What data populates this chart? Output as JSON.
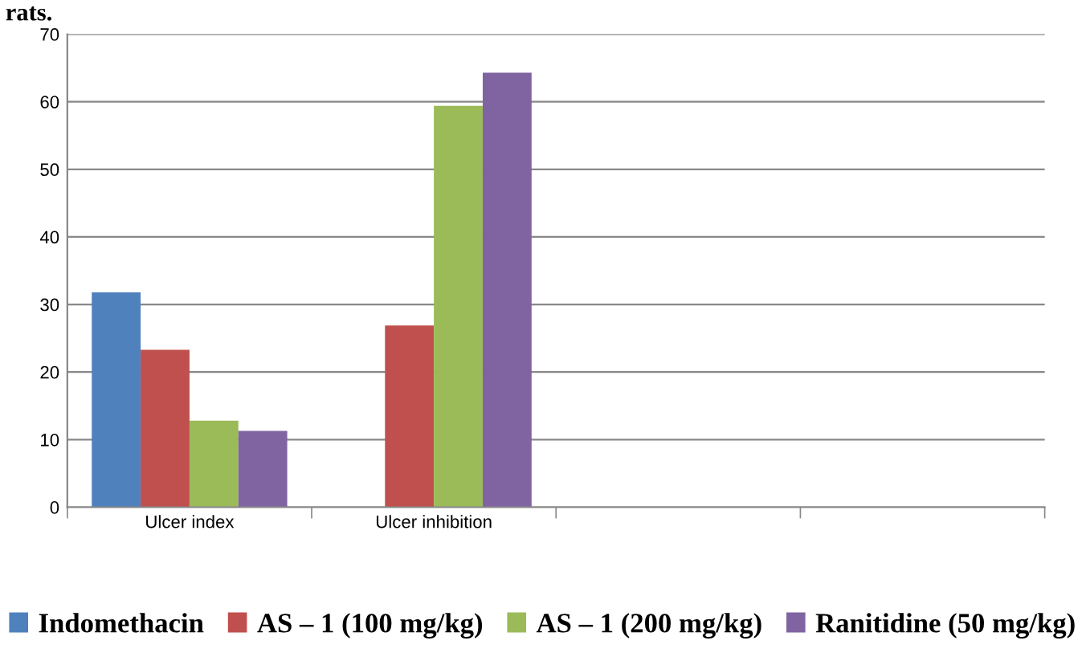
{
  "chart_data": {
    "type": "bar",
    "annotations": [
      "rats."
    ],
    "categories": [
      "Ulcer index",
      "Ulcer inhibition",
      null,
      null
    ],
    "series": [
      {
        "name": "Indomethacin",
        "color": "#4f81bd",
        "values": [
          31.8,
          null,
          null,
          null
        ]
      },
      {
        "name": "AS – 1 (100 mg/kg)",
        "color": "#c0504d",
        "values": [
          23.3,
          26.9,
          null,
          null
        ]
      },
      {
        "name": "AS – 1 (200 mg/kg)",
        "color": "#9bbb59",
        "values": [
          12.8,
          59.4,
          null,
          null
        ]
      },
      {
        "name": "Ranitidine (50 mg/kg)",
        "color": "#8064a2",
        "values": [
          11.3,
          64.3,
          null,
          null
        ]
      }
    ],
    "ylim": [
      0,
      70
    ],
    "yticks": [
      0,
      10,
      20,
      30,
      40,
      50,
      60,
      70
    ],
    "grid": "y",
    "legend": "bottom"
  }
}
